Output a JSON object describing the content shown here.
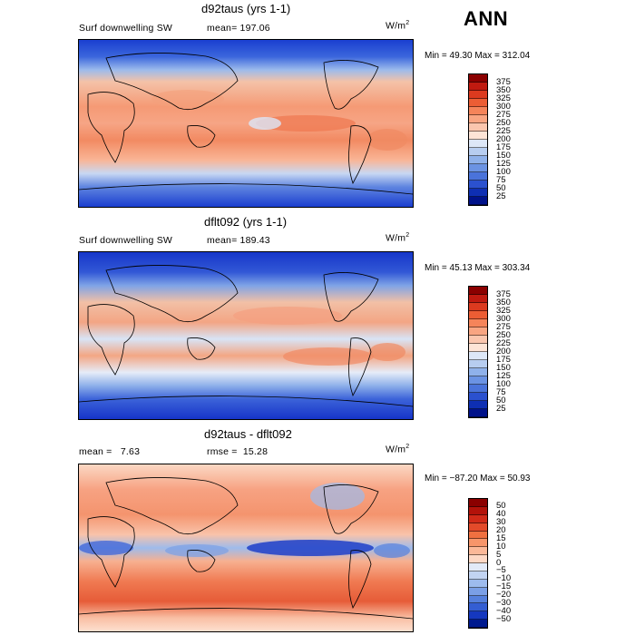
{
  "page": {
    "title": "ANN"
  },
  "panels": [
    {
      "id": "test",
      "title": "d92taus (yrs 1-1)",
      "left_label": "Surf downwelling SW",
      "stat_label": "mean=",
      "stat_value": "197.06",
      "units_base": "W/m",
      "units_sup": "2",
      "min_label": "Min =",
      "min_value": "49.30",
      "max_label": "Max =",
      "max_value": "312.04",
      "colorbar_levels": [
        "375",
        "350",
        "325",
        "300",
        "275",
        "250",
        "225",
        "200",
        "175",
        "150",
        "125",
        "100",
        "75",
        "50",
        "25"
      ],
      "colorbar_colors": [
        "#8b0000",
        "#c01a10",
        "#dc3a1f",
        "#ec5d34",
        "#f5845a",
        "#f9a582",
        "#fbc6ae",
        "#fde4d6",
        "#dde7f7",
        "#b7cdf0",
        "#8fb1ea",
        "#6b93e3",
        "#4a73da",
        "#2b51cf",
        "#0e2fb3",
        "#00128a"
      ]
    },
    {
      "id": "control",
      "title": "dflt092 (yrs 1-1)",
      "left_label": "Surf downwelling SW",
      "stat_label": "mean=",
      "stat_value": "189.43",
      "units_base": "W/m",
      "units_sup": "2",
      "min_label": "Min =",
      "min_value": "45.13",
      "max_label": "Max =",
      "max_value": "303.34",
      "colorbar_levels": [
        "375",
        "350",
        "325",
        "300",
        "275",
        "250",
        "225",
        "200",
        "175",
        "150",
        "125",
        "100",
        "75",
        "50",
        "25"
      ],
      "colorbar_colors": [
        "#8b0000",
        "#c01a10",
        "#dc3a1f",
        "#ec5d34",
        "#f5845a",
        "#f9a582",
        "#fbc6ae",
        "#fde4d6",
        "#dde7f7",
        "#b7cdf0",
        "#8fb1ea",
        "#6b93e3",
        "#4a73da",
        "#2b51cf",
        "#0e2fb3",
        "#00128a"
      ]
    },
    {
      "id": "diff",
      "title": "d92taus - dflt092",
      "left_label": "mean =",
      "left_value": "7.63",
      "stat_label": "rmse =",
      "stat_value": "15.28",
      "units_base": "W/m",
      "units_sup": "2",
      "min_label": "Min =",
      "min_value": "−87.20",
      "max_label": "Max =",
      "max_value": "50.93",
      "colorbar_levels": [
        "50",
        "40",
        "30",
        "20",
        "15",
        "10",
        "5",
        "0",
        "−5",
        "−10",
        "−15",
        "−20",
        "−30",
        "−40",
        "−50"
      ],
      "colorbar_colors": [
        "#8b0000",
        "#b3120a",
        "#d12a18",
        "#e34a2a",
        "#f07040",
        "#f7956a",
        "#fbb898",
        "#fdd8c5",
        "#e2eaf8",
        "#c2d4f2",
        "#9dbbed",
        "#7a9fe6",
        "#5580dd",
        "#345ed3",
        "#1538bf",
        "#001a8f"
      ]
    }
  ],
  "chart_data": [
    {
      "type": "heatmap",
      "title": "d92taus (yrs 1-1)",
      "variable": "Surf downwelling SW",
      "units": "W/m2",
      "mean": 197.06,
      "min": 49.3,
      "max": 312.04,
      "contour_levels": [
        25,
        50,
        75,
        100,
        125,
        150,
        175,
        200,
        225,
        250,
        275,
        300,
        325,
        350,
        375
      ]
    },
    {
      "type": "heatmap",
      "title": "dflt092 (yrs 1-1)",
      "variable": "Surf downwelling SW",
      "units": "W/m2",
      "mean": 189.43,
      "min": 45.13,
      "max": 303.34,
      "contour_levels": [
        25,
        50,
        75,
        100,
        125,
        150,
        175,
        200,
        225,
        250,
        275,
        300,
        325,
        350,
        375
      ]
    },
    {
      "type": "heatmap",
      "title": "d92taus - dflt092",
      "units": "W/m2",
      "mean": 7.63,
      "rmse": 15.28,
      "min": -87.2,
      "max": 50.93,
      "contour_levels": [
        -50,
        -40,
        -30,
        -20,
        -15,
        -10,
        -5,
        0,
        5,
        10,
        15,
        20,
        30,
        40,
        50
      ]
    }
  ]
}
